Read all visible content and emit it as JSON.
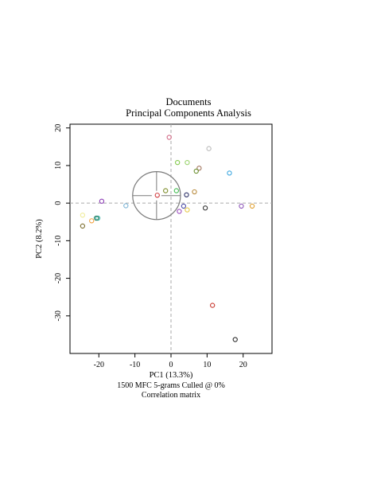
{
  "chart_data": {
    "type": "scatter",
    "title": "Documents",
    "subtitle": "Principal Components Analysis",
    "xlabel": "PC1 (13.3%)",
    "ylabel": "PC2 (8.2%)",
    "caption_lines": [
      "1500 MFC 5-grams Culled @ 0%",
      "Correlation matrix"
    ],
    "xlim": [
      -28,
      28
    ],
    "ylim": [
      -40,
      21
    ],
    "x_ticks": [
      -20,
      -10,
      0,
      10,
      20
    ],
    "y_ticks": [
      20,
      10,
      0,
      -10,
      -20,
      -30
    ],
    "x_tick_labels": [
      "-20",
      "-10",
      "0",
      "10",
      "20"
    ],
    "y_tick_labels": [
      "20",
      "10",
      "0",
      "-10",
      "-20",
      "-30"
    ],
    "grid": false,
    "reference_lines": {
      "x": 0,
      "y": 0,
      "style": "dashed",
      "color": "#aaaaaa"
    },
    "circle": {
      "center": [
        -4,
        2
      ],
      "radius": 6.5,
      "color": "#7a7a7a"
    },
    "points": [
      {
        "x": -0.5,
        "y": 17.5,
        "color": "#d26a86"
      },
      {
        "x": 10.5,
        "y": 14.5,
        "color": "#b9b9b9"
      },
      {
        "x": 1.8,
        "y": 10.8,
        "color": "#82c94a"
      },
      {
        "x": 4.5,
        "y": 10.8,
        "color": "#9ad36d"
      },
      {
        "x": 7.8,
        "y": 9.3,
        "color": "#a0725a"
      },
      {
        "x": 7.0,
        "y": 8.5,
        "color": "#6a8f2e"
      },
      {
        "x": 16.2,
        "y": 8.0,
        "color": "#3aa6e0"
      },
      {
        "x": -1.5,
        "y": 3.3,
        "color": "#7a8a25"
      },
      {
        "x": 1.5,
        "y": 3.3,
        "color": "#3dba4b"
      },
      {
        "x": 6.5,
        "y": 3.0,
        "color": "#b88a3c"
      },
      {
        "x": -3.8,
        "y": 2.1,
        "color": "#d0393c"
      },
      {
        "x": 4.3,
        "y": 2.2,
        "color": "#2b2f66"
      },
      {
        "x": -19.2,
        "y": 0.5,
        "color": "#8b3ab5"
      },
      {
        "x": -12.5,
        "y": -0.7,
        "color": "#7ab3d6"
      },
      {
        "x": 3.5,
        "y": -0.8,
        "color": "#4a4aa8"
      },
      {
        "x": 19.5,
        "y": -0.8,
        "color": "#8c54b8"
      },
      {
        "x": 22.5,
        "y": -0.8,
        "color": "#e0a030"
      },
      {
        "x": 9.5,
        "y": -1.3,
        "color": "#333333"
      },
      {
        "x": 4.5,
        "y": -1.8,
        "color": "#e6c84a"
      },
      {
        "x": 2.3,
        "y": -2.2,
        "color": "#9b4dc0"
      },
      {
        "x": -24.5,
        "y": -3.2,
        "color": "#f0ec9a"
      },
      {
        "x": -20.3,
        "y": -4.0,
        "color": "#26a89a"
      },
      {
        "x": -20.7,
        "y": -4.0,
        "color": "#1f7a5c"
      },
      {
        "x": -22.0,
        "y": -4.7,
        "color": "#f2a240"
      },
      {
        "x": -24.5,
        "y": -6.1,
        "color": "#7a6b2a"
      },
      {
        "x": 11.5,
        "y": -27.2,
        "color": "#c8372e"
      },
      {
        "x": 17.8,
        "y": -36.3,
        "color": "#2a2a2a"
      }
    ]
  }
}
